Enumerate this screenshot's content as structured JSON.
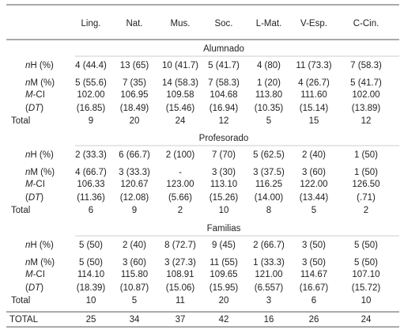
{
  "table": {
    "columns": [
      "Ling.",
      "Nat.",
      "Mus.",
      "Soc.",
      "L-Mat.",
      "V-Esp.",
      "C-Cin."
    ],
    "row_labels": [
      {
        "parts": [
          "n",
          "H (%)"
        ],
        "italic": 0
      },
      {
        "parts": [
          "n",
          "M (%)"
        ],
        "italic": 0
      },
      {
        "parts": [
          "M",
          "-CI"
        ],
        "italic": 0
      },
      {
        "parts": [
          "(",
          "DT",
          ")"
        ],
        "italic": 1
      },
      {
        "parts": [
          "Total"
        ],
        "italic": -1
      }
    ],
    "sections": [
      {
        "title": "Alumnado",
        "rows": [
          [
            "4 (44.4)",
            "13 (65)",
            "10 (41.7)",
            "5 (41.7)",
            "4 (80)",
            "11 (73.3)",
            "7 (58.3)"
          ],
          [
            "5 (55.6)",
            "7 (35)",
            "14 (58.3)",
            "7 (58.3)",
            "1 (20)",
            "4 (26.7)",
            "5 (41.7)"
          ],
          [
            "102.00",
            "106.95",
            "109.58",
            "104.68",
            "113.80",
            "111.60",
            "102.00"
          ],
          [
            "(16.85)",
            "(18.49)",
            "(15.46)",
            "(16.94)",
            "(10.35)",
            "(15.14)",
            "(13.89)"
          ],
          [
            "9",
            "20",
            "24",
            "12",
            "5",
            "15",
            "12"
          ]
        ]
      },
      {
        "title": "Profesorado",
        "rows": [
          [
            "2 (33.3)",
            "6 (66.7)",
            "2 (100)",
            "7 (70)",
            "5 (62.5)",
            "2 (40)",
            "1 (50)"
          ],
          [
            "4 (66.7)",
            "3 (33.3)",
            "-",
            "3 (30)",
            "3 (37.5)",
            "3 (60)",
            "1 (50)"
          ],
          [
            "106.33",
            "120.67",
            "123.00",
            "113.10",
            "116.25",
            "122.00",
            "126.50"
          ],
          [
            "(11.36)",
            "(12.08)",
            "(5.66)",
            "(15.26)",
            "(14.00)",
            "(13.44)",
            "(.71)"
          ],
          [
            "6",
            "9",
            "2",
            "10",
            "8",
            "5",
            "2"
          ]
        ]
      },
      {
        "title": "Familias",
        "rows": [
          [
            "5 (50)",
            "2 (40)",
            "8 (72.7)",
            "9 (45)",
            "2 (66.7)",
            "3 (50)",
            "5 (50)"
          ],
          [
            "5 (50)",
            "3 (60)",
            "3 (27.3)",
            "11 (55)",
            "1 (33.3)",
            "3 (50)",
            "5 (50)"
          ],
          [
            "114.10",
            "115.80",
            "108.91",
            "109.65",
            "121.00",
            "114.67",
            "107.10"
          ],
          [
            "(18.39)",
            "(10.87)",
            "(15.06)",
            "(15.95)",
            "(6.557)",
            "(16.67)",
            "(15.72)"
          ],
          [
            "10",
            "5",
            "11",
            "20",
            "3",
            "6",
            "10"
          ]
        ]
      }
    ],
    "grand_total": {
      "label": "TOTAL",
      "values": [
        "25",
        "34",
        "37",
        "42",
        "16",
        "26",
        "24"
      ]
    }
  }
}
